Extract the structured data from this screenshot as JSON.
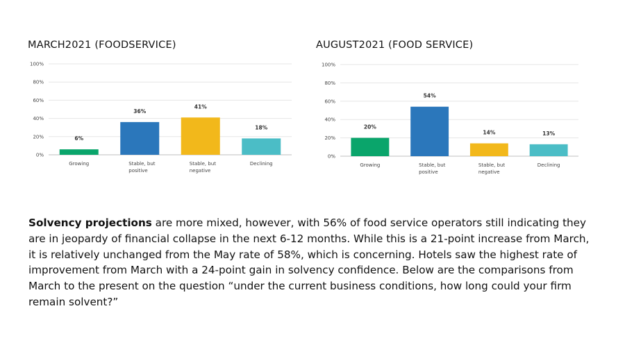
{
  "chart_data": [
    {
      "type": "bar",
      "title": "MARCH2021 (FOODSERVICE)",
      "categories": [
        [
          "Growing"
        ],
        [
          "Stable, but",
          "positive"
        ],
        [
          "Stable, but",
          "negative"
        ],
        [
          "Declining"
        ]
      ],
      "values": [
        6,
        36,
        41,
        18
      ],
      "value_labels": [
        "6%",
        "36%",
        "41%",
        "18%"
      ],
      "colors": [
        "#0aa56b",
        "#2b77bb",
        "#f2b81b",
        "#4bbdc6"
      ],
      "ylim": [
        0,
        100
      ],
      "yticks": [
        0,
        20,
        40,
        60,
        80,
        100
      ],
      "ytick_labels": [
        "0%",
        "20%",
        "40%",
        "60%",
        "80%",
        "100%"
      ],
      "grid": true
    },
    {
      "type": "bar",
      "title": "AUGUST2021 (FOOD SERVICE)",
      "categories": [
        [
          "Growing"
        ],
        [
          "Stable, but",
          "positive"
        ],
        [
          "Stable, but",
          "negative"
        ],
        [
          "Declining"
        ]
      ],
      "values": [
        20,
        54,
        14,
        13
      ],
      "value_labels": [
        "20%",
        "54%",
        "14%",
        "13%"
      ],
      "colors": [
        "#0aa56b",
        "#2b77bb",
        "#f2b81b",
        "#4bbdc6"
      ],
      "ylim": [
        0,
        100
      ],
      "yticks": [
        0,
        20,
        40,
        60,
        80,
        100
      ],
      "ytick_labels": [
        "0%",
        "20%",
        "40%",
        "60%",
        "80%",
        "100%"
      ],
      "grid": true
    }
  ],
  "text": {
    "bold_lead": "Solvency projections",
    "body": " are more mixed, however, with 56% of food service operators still indicating they are in jeopardy of financial collapse in the next 6-12 months.  While this is a 21-point increase from March, it is relatively unchanged from the May rate of 58%, which is concerning.  Hotels saw the highest rate of improvement from March with a 24-point gain in solvency confidence.  Below are the comparisons from March to the present on the question “under the current business conditions, how long could your firm remain solvent?”"
  }
}
